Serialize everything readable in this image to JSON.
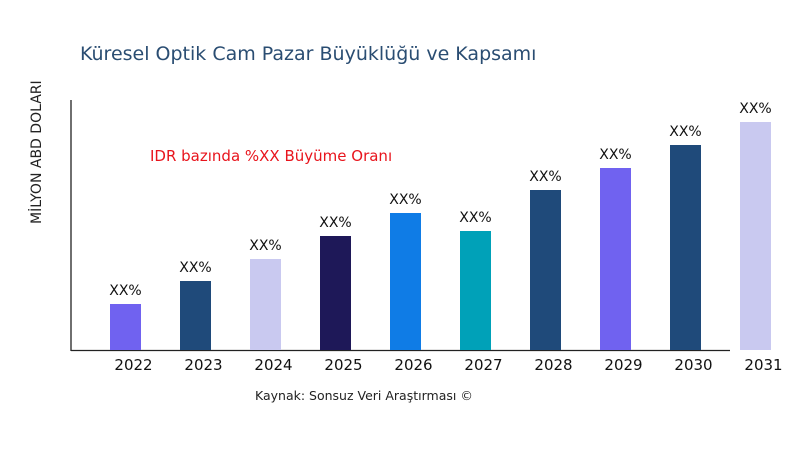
{
  "chart_data": {
    "type": "bar",
    "title": "Küresel Optik Cam Pazar Büyüklüğü ve Kapsamı",
    "ylabel": "MİLYON ABD DOLARI",
    "xlabel": "",
    "annotation": "IDR bazında %XX Büyüme Oranı",
    "source": "Kaynak: Sonsuz Veri Araştırması ©",
    "categories": [
      "2022",
      "2023",
      "2024",
      "2025",
      "2026",
      "2027",
      "2028",
      "2029",
      "2030",
      "2031"
    ],
    "values": [
      46,
      69,
      91,
      114,
      137,
      119,
      160,
      182,
      205,
      228
    ],
    "data_labels": [
      "XX%",
      "XX%",
      "XX%",
      "XX%",
      "XX%",
      "XX%",
      "XX%",
      "XX%",
      "XX%",
      "XX%"
    ],
    "colors": [
      "#7062f0",
      "#1f4a7a",
      "#c9c9f0",
      "#1e1858",
      "#0f7ce6",
      "#00a1b8",
      "#1f4a7a",
      "#7062f0",
      "#1f4a7a",
      "#c9c9f0"
    ],
    "ylim": [
      0,
      250
    ],
    "grid": false,
    "y_ticks_shown": false,
    "title_color": "#2a4d72",
    "annotation_color": "#e8141c"
  }
}
